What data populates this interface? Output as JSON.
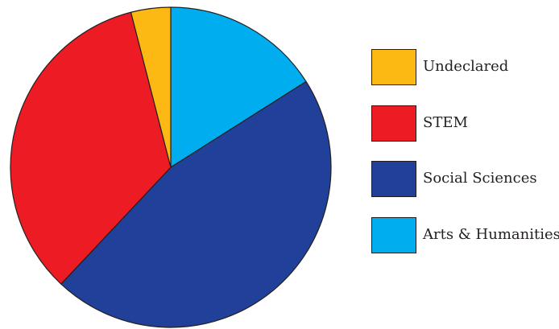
{
  "chart_data": {
    "type": "pie",
    "title": "",
    "slices": [
      {
        "label": "Arts & Humanities",
        "value": 16,
        "color": "#00aeef"
      },
      {
        "label": "Social Sciences",
        "value": 46,
        "color": "#21409a"
      },
      {
        "label": "STEM",
        "value": 34,
        "color": "#ed1c24"
      },
      {
        "label": "Undeclared",
        "value": 4,
        "color": "#fdb913"
      }
    ],
    "legend": {
      "placement": "right",
      "order": [
        "Undeclared",
        "STEM",
        "Social Sciences",
        "Arts & Humanities"
      ]
    },
    "start_angle": "12 o'clock",
    "direction": "clockwise",
    "edge_color": "#231f20"
  }
}
